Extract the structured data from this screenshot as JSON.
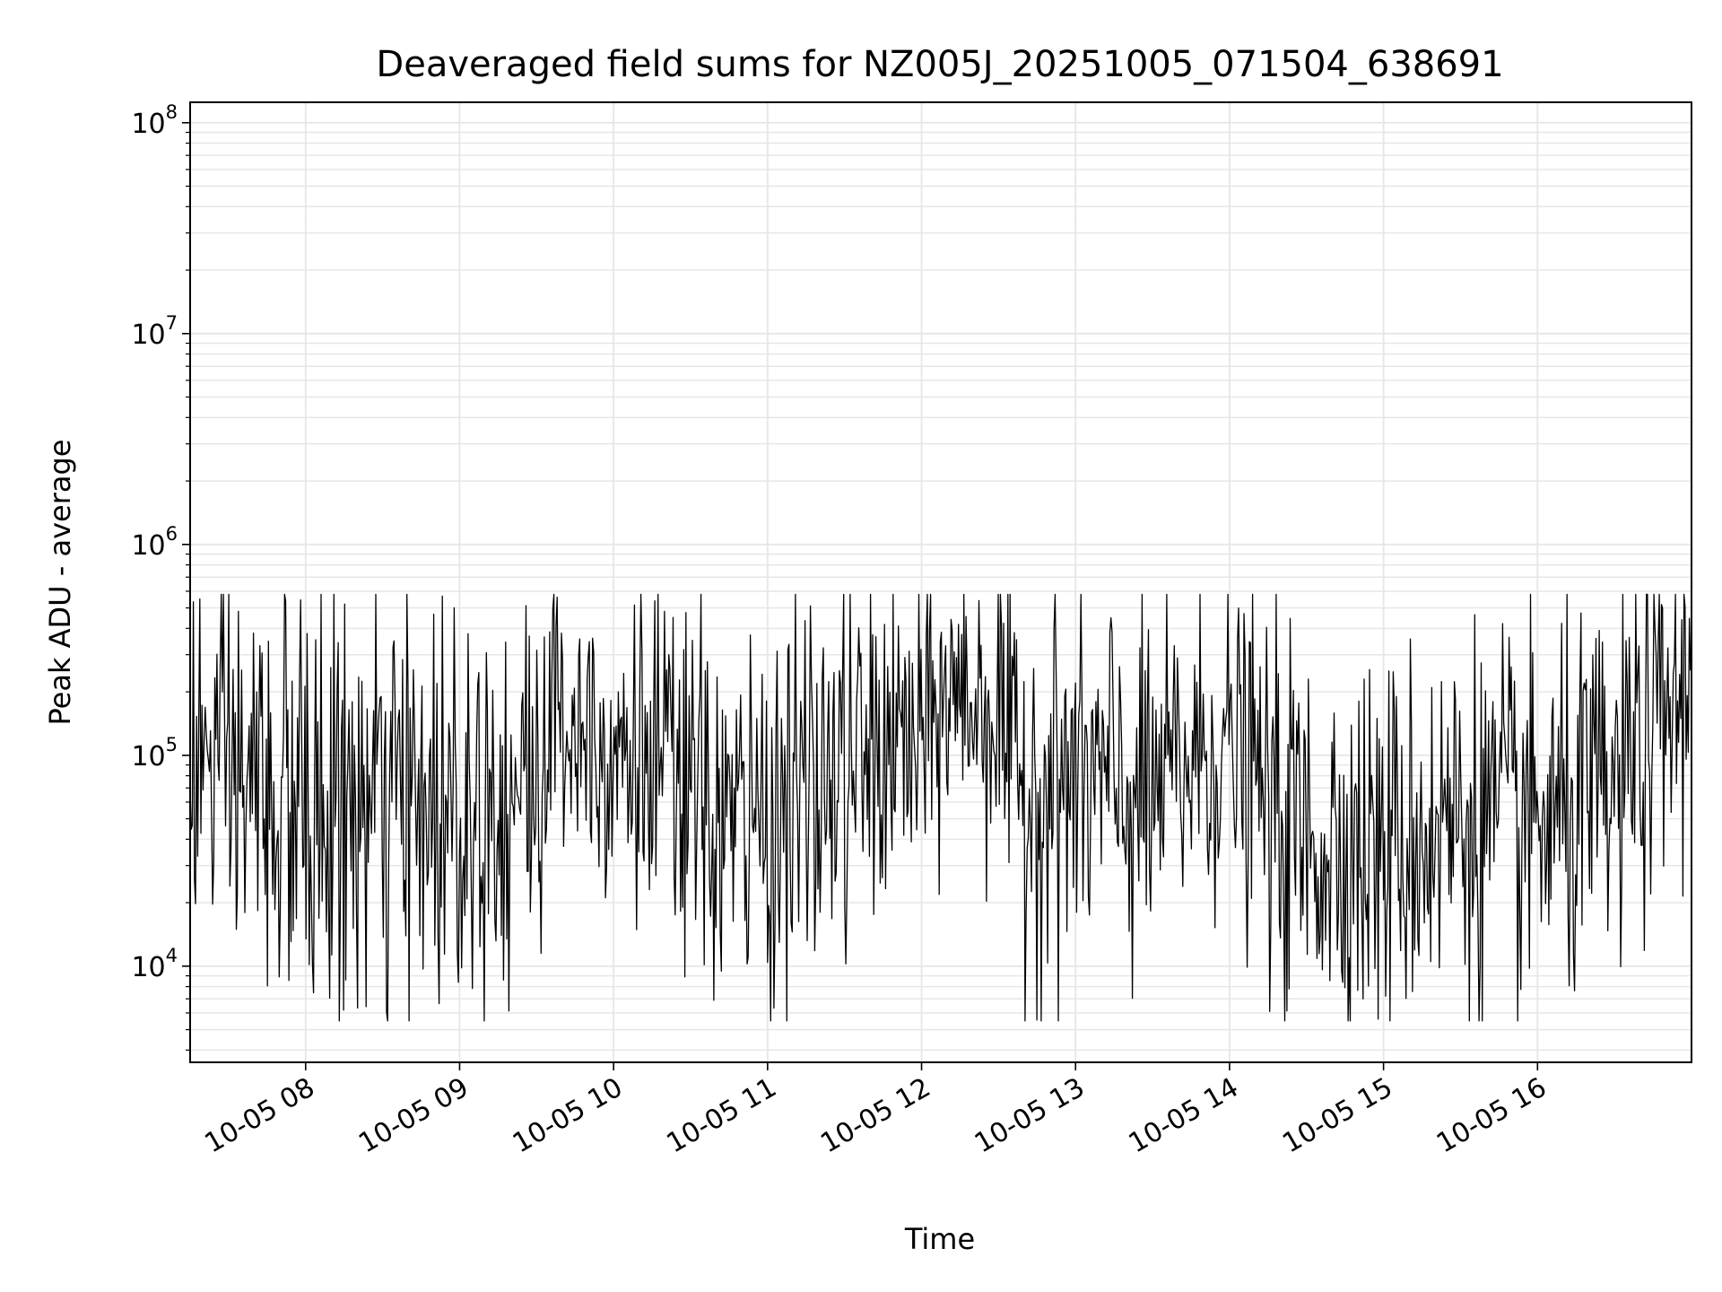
{
  "chart_data": {
    "type": "line",
    "title": "Deaveraged field sums for NZ005J_20251005_071504_638691",
    "xlabel": "Time",
    "ylabel": "Peak ADU - average",
    "yscale": "log",
    "ylim": [
      3500,
      125000000
    ],
    "xlim_hours": [
      7.25,
      17.0
    ],
    "grid": true,
    "line_color": "#000000",
    "grid_color": "#e6e6e6",
    "x_ticks": [
      {
        "value": 8,
        "label": "10-05 08"
      },
      {
        "value": 9,
        "label": "10-05 09"
      },
      {
        "value": 10,
        "label": "10-05 10"
      },
      {
        "value": 11,
        "label": "10-05 11"
      },
      {
        "value": 12,
        "label": "10-05 12"
      },
      {
        "value": 13,
        "label": "10-05 13"
      },
      {
        "value": 14,
        "label": "10-05 14"
      },
      {
        "value": 15,
        "label": "10-05 15"
      },
      {
        "value": 16,
        "label": "10-05 16"
      }
    ],
    "y_ticks": [
      {
        "value": 10000,
        "base": "10",
        "exp": "4"
      },
      {
        "value": 100000,
        "base": "10",
        "exp": "5"
      },
      {
        "value": 1000000,
        "base": "10",
        "exp": "6"
      },
      {
        "value": 10000000,
        "base": "10",
        "exp": "7"
      },
      {
        "value": 100000000,
        "base": "10",
        "exp": "8"
      }
    ],
    "series": [
      {
        "name": "deaveraged field sum",
        "sample_count": 1400,
        "envelope": {
          "x": [
            7.25,
            7.5,
            8.0,
            8.5,
            9.0,
            9.5,
            9.6,
            10.0,
            10.5,
            10.8,
            11.0,
            11.5,
            11.8,
            12.0,
            12.2,
            12.5,
            12.6,
            13.0,
            13.5,
            13.8,
            14.0,
            14.3,
            14.5,
            15.0,
            15.5,
            16.0,
            16.5,
            17.0
          ],
          "median": [
            100000,
            80000,
            50000,
            55000,
            60000,
            70000,
            160000,
            120000,
            60000,
            45000,
            50000,
            80000,
            110000,
            110000,
            200000,
            160000,
            70000,
            75000,
            60000,
            100000,
            110000,
            50000,
            40000,
            35000,
            50000,
            45000,
            60000,
            200000
          ],
          "spread": [
            0.45,
            0.5,
            0.5,
            0.5,
            0.5,
            0.5,
            0.35,
            0.4,
            0.45,
            0.45,
            0.45,
            0.45,
            0.4,
            0.45,
            0.3,
            0.4,
            0.45,
            0.45,
            0.45,
            0.4,
            0.35,
            0.45,
            0.45,
            0.45,
            0.45,
            0.45,
            0.45,
            0.35
          ]
        }
      }
    ]
  }
}
